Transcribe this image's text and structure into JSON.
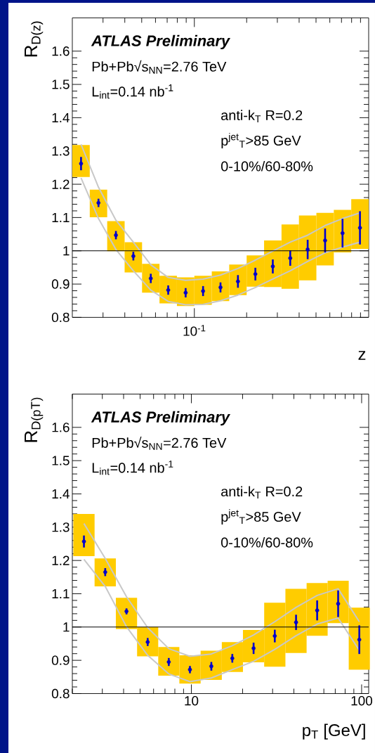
{
  "chart_data": [
    {
      "type": "scatter",
      "xlabel": "z",
      "ylabel": "R$_{D(z)}$",
      "ylim": [
        0.8,
        1.7
      ],
      "categories": [
        null,
        null,
        null,
        null,
        null,
        null,
        null,
        null,
        null,
        null,
        null,
        null,
        null,
        null,
        null,
        null,
        null
      ],
      "yticks": [
        0.8,
        0.9,
        1,
        1.1,
        1.2,
        1.3,
        1.4,
        1.5,
        1.6
      ],
      "annotations": [
        "ATLAS Preliminary",
        "Pb+Pb√s$_{NN}$=2.76 TeV",
        "L$_{int}$=0.14 nb$^{-1}$",
        "anti-k$_{T}$ R=0.2",
        "p$^{jet}$$_{T}$>85 GeV",
        "0-10%/60-80%",
        "10$^{-1}$"
      ],
      "ref_lines": [
        {
          "axis": "y",
          "value": 1,
          "color": "#000000"
        }
      ],
      "series": [
        {
          "type": "bar",
          "color": "#ffcc00",
          "base": [
            1.222,
            1.101,
            0.999,
            0.935,
            0.874,
            0.842,
            0.834,
            0.838,
            0.849,
            0.867,
            0.892,
            0.891,
            0.886,
            0.911,
            0.956,
            0.995,
            1.006
          ],
          "values": [
            0.096,
            0.083,
            0.09,
            0.091,
            0.087,
            0.083,
            0.086,
            0.087,
            0.089,
            0.092,
            0.094,
            0.14,
            0.193,
            0.195,
            0.158,
            0.128,
            0.149
          ]
        },
        {
          "type": "line",
          "color": "#c8c8c8",
          "values": [
            1.32,
            1.191,
            1.092,
            1.026,
            0.958,
            0.92,
            0.911,
            0.915,
            0.927,
            0.947,
            0.972,
            0.999,
            1.026,
            1.047,
            1.076,
            1.097,
            1.114
          ]
        },
        {
          "type": "line",
          "color": "#c8c8c8",
          "values": [
            1.219,
            1.097,
            1.004,
            0.94,
            0.882,
            0.848,
            0.838,
            0.839,
            0.85,
            0.867,
            0.89,
            0.915,
            0.94,
            0.968,
            0.994,
            1.011,
            1.026
          ]
        },
        {
          "color": "#0000cc",
          "marker": "circle",
          "values": [
            1.262,
            1.144,
            1.047,
            0.984,
            0.917,
            0.882,
            0.874,
            0.879,
            0.89,
            0.908,
            0.93,
            0.953,
            0.978,
            1.004,
            1.031,
            1.053,
            1.069
          ],
          "errors": [
            0.02,
            0.0125,
            0.0125,
            0.013,
            0.014,
            0.014,
            0.014,
            0.015,
            0.015,
            0.019,
            0.019,
            0.021,
            0.023,
            0.029,
            0.036,
            0.043,
            0.05
          ]
        }
      ]
    },
    {
      "type": "scatter",
      "xlabel": "p$_{T}$ [GeV]",
      "ylabel": "R$_{D(p}$$_{T}$$_{)}$",
      "log": "x",
      "xlim": [
        2,
        110
      ],
      "ylim": [
        0.8,
        1.7
      ],
      "xticks": [
        10,
        100
      ],
      "yticks": [
        0.8,
        0.9,
        1,
        1.1,
        1.2,
        1.3,
        1.4,
        1.5,
        1.6
      ],
      "annotations": [
        "ATLAS Preliminary",
        "Pb+Pb√s$_{NN}$=2.76 TeV",
        "L$_{int}$=0.14 nb$^{-1}$",
        "anti-k$_{T}$ R=0.2",
        "p$^{jet}$$_{T}$>85 GeV",
        "0-10%/60-80%"
      ],
      "ref_lines": [
        {
          "axis": "y",
          "value": 1,
          "color": "#000000"
        }
      ],
      "series": [
        {
          "type": "bar",
          "color": "#ffcc00",
          "x": [
            2.34,
            3.12,
            4.16,
            5.54,
            7.37,
            9.81,
            13.1,
            17.4,
            23.2,
            30.9,
            41.2,
            54.8,
            72.8,
            96.9
          ],
          "base": [
            1.213,
            1.122,
            0.994,
            0.912,
            0.854,
            0.83,
            0.841,
            0.865,
            0.894,
            0.881,
            0.922,
            0.974,
            1.012,
            0.872
          ],
          "values": [
            0.127,
            0.084,
            0.094,
            0.088,
            0.086,
            0.085,
            0.088,
            0.09,
            0.097,
            0.192,
            0.193,
            0.158,
            0.127,
            0.186
          ]
        },
        {
          "type": "line",
          "color": "#c8c8c8",
          "x": [
            2.34,
            3.12,
            4.16,
            5.54,
            7.37,
            9.81,
            13.1,
            17.4,
            23.2,
            30.9,
            41.2,
            54.8,
            72.8,
            96.9
          ],
          "values": [
            1.311,
            1.206,
            1.091,
            0.998,
            0.935,
            0.912,
            0.919,
            0.944,
            0.976,
            1.016,
            1.059,
            1.095,
            1.115,
            1.016
          ]
        },
        {
          "type": "line",
          "color": "#c8c8c8",
          "x": [
            2.34,
            3.12,
            4.16,
            5.54,
            7.37,
            9.81,
            13.1,
            17.4,
            23.2,
            30.9,
            41.2,
            54.8,
            72.8,
            96.9
          ],
          "values": [
            1.203,
            1.122,
            1.001,
            0.915,
            0.859,
            0.836,
            0.847,
            0.872,
            0.897,
            0.933,
            0.974,
            1.009,
            1.027,
            0.93
          ]
        },
        {
          "color": "#0000cc",
          "marker": "circle",
          "x": [
            2.34,
            3.12,
            4.16,
            5.54,
            7.37,
            9.81,
            13.1,
            17.4,
            23.2,
            30.9,
            41.2,
            54.8,
            72.8,
            96.9
          ],
          "values": [
            1.257,
            1.165,
            1.047,
            0.955,
            0.895,
            0.872,
            0.882,
            0.906,
            0.936,
            0.973,
            1.014,
            1.05,
            1.07,
            0.962
          ],
          "errors": [
            0.018,
            0.012,
            0.009,
            0.012,
            0.012,
            0.011,
            0.013,
            0.013,
            0.017,
            0.019,
            0.023,
            0.03,
            0.04,
            0.043
          ]
        }
      ]
    }
  ]
}
